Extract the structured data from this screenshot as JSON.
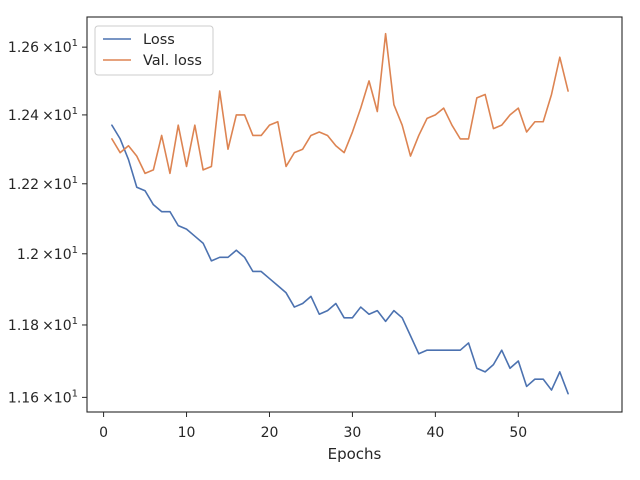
{
  "chart_data": {
    "type": "line",
    "title": "",
    "xlabel": "Epochs",
    "ylabel": "",
    "yscale": "log",
    "xlim": [
      -2,
      62.5
    ],
    "ylim": [
      11.56,
      12.69
    ],
    "grid": false,
    "legend_position": "top-left",
    "x_ticks": [
      0,
      10,
      20,
      30,
      40,
      50
    ],
    "x_tick_labels": [
      "0",
      "10",
      "20",
      "30",
      "40",
      "50"
    ],
    "y_ticks": [
      11.6,
      11.8,
      12.0,
      12.2,
      12.4,
      12.6
    ],
    "y_tick_labels": [
      {
        "mantissa": "1.16",
        "exp": "1"
      },
      {
        "mantissa": "1.18",
        "exp": "1"
      },
      {
        "mantissa": "1.2",
        "exp": "1"
      },
      {
        "mantissa": "1.22",
        "exp": "1"
      },
      {
        "mantissa": "1.24",
        "exp": "1"
      },
      {
        "mantissa": "1.26",
        "exp": "1"
      }
    ],
    "y_tick_times": "×10",
    "x": [
      1,
      2,
      3,
      4,
      5,
      6,
      7,
      8,
      9,
      10,
      11,
      12,
      13,
      14,
      15,
      16,
      17,
      18,
      19,
      20,
      21,
      22,
      23,
      24,
      25,
      26,
      27,
      28,
      29,
      30,
      31,
      32,
      33,
      34,
      35,
      36,
      37,
      38,
      39,
      40,
      41,
      42,
      43,
      44,
      45,
      46,
      47,
      48,
      49,
      50,
      51,
      52,
      53,
      54,
      55,
      56
    ],
    "series": [
      {
        "name": "Loss",
        "color": "#4c72b0",
        "values": [
          12.37,
          12.33,
          12.27,
          12.19,
          12.18,
          12.14,
          12.12,
          12.12,
          12.08,
          12.07,
          12.05,
          12.03,
          11.98,
          11.99,
          11.99,
          12.01,
          11.99,
          11.95,
          11.95,
          11.93,
          11.91,
          11.89,
          11.85,
          11.86,
          11.88,
          11.83,
          11.84,
          11.86,
          11.82,
          11.82,
          11.85,
          11.83,
          11.84,
          11.81,
          11.84,
          11.82,
          11.77,
          11.72,
          11.73,
          11.73,
          11.73,
          11.73,
          11.73,
          11.75,
          11.68,
          11.67,
          11.69,
          11.73,
          11.68,
          11.7,
          11.63,
          11.65,
          11.65,
          11.62,
          11.67,
          11.61
        ]
      },
      {
        "name": "Val. loss",
        "color": "#dd8452",
        "values": [
          12.33,
          12.29,
          12.31,
          12.28,
          12.23,
          12.24,
          12.34,
          12.23,
          12.37,
          12.25,
          12.37,
          12.24,
          12.25,
          12.47,
          12.3,
          12.4,
          12.4,
          12.34,
          12.34,
          12.37,
          12.38,
          12.25,
          12.29,
          12.3,
          12.34,
          12.35,
          12.34,
          12.31,
          12.29,
          12.35,
          12.42,
          12.5,
          12.41,
          12.64,
          12.43,
          12.37,
          12.28,
          12.34,
          12.39,
          12.4,
          12.42,
          12.37,
          12.33,
          12.33,
          12.45,
          12.46,
          12.36,
          12.37,
          12.4,
          12.42,
          12.35,
          12.38,
          12.38,
          12.46,
          12.57,
          12.47
        ]
      }
    ]
  }
}
